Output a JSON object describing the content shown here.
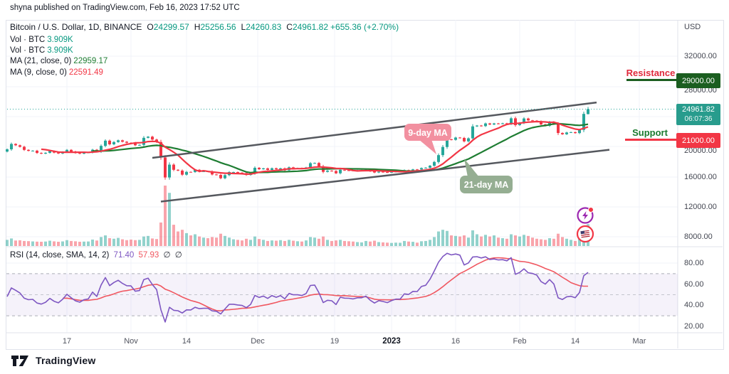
{
  "attribution": "shyna published on TradingView.com, Feb 16, 2023 17:52 UTC",
  "footer": {
    "brand": "TradingView"
  },
  "legend": {
    "symbol": "Bitcoin / U.S. Dollar, 1D, BINANCE",
    "ohlc": [
      {
        "label": "O",
        "value": "24299.57"
      },
      {
        "label": "H",
        "value": "25256.56"
      },
      {
        "label": "L",
        "value": "24260.83"
      },
      {
        "label": "C",
        "value": "24961.82"
      }
    ],
    "change": "+655.36 (+2.70%)",
    "vol_rows": [
      {
        "label": "Vol · BTC",
        "value": "3.909K"
      },
      {
        "label": "Vol · BTC",
        "value": "3.909K"
      }
    ],
    "ma_rows": [
      {
        "label": "MA (21, close, 0)",
        "value": "22959.17",
        "color": "#1e7d32"
      },
      {
        "label": "MA (9, close, 0)",
        "value": "22591.49",
        "color": "#f23645"
      }
    ]
  },
  "rsi_legend": {
    "label": "RSI (14, close, SMA, 14, 2)",
    "rsi_value": "71.40",
    "sma_value": "57.93",
    "empty1": "∅",
    "empty2": "∅"
  },
  "axes": {
    "currency": "USD",
    "price_ticks": [
      "32000.00",
      "28000.00",
      "24000.00",
      "20000.00",
      "16000.00",
      "12000.00",
      "8000.00"
    ],
    "rsi_ticks": [
      "80.00",
      "60.00",
      "40.00",
      "20.00"
    ],
    "time_ticks": [
      {
        "label": "17"
      },
      {
        "label": "Nov"
      },
      {
        "label": "14"
      },
      {
        "label": "Dec"
      },
      {
        "label": "19"
      },
      {
        "label": "2023",
        "bold": true
      },
      {
        "label": "16"
      },
      {
        "label": "Feb"
      },
      {
        "label": "14"
      },
      {
        "label": "Mar"
      }
    ]
  },
  "levels": {
    "resistance": {
      "text": "Resistance",
      "price": "29000.00"
    },
    "support": {
      "text": "Support",
      "price": "21000.00"
    },
    "last_price": {
      "price": "24961.82",
      "countdown": "06:07:36"
    }
  },
  "annotations": {
    "ma9_callout": "9-day MA",
    "ma21_callout": "21-day MA"
  },
  "icons": {
    "event1": "lightning-event",
    "event2": "us-flag-event"
  },
  "chart_data": {
    "type": "candlestick",
    "title": "Bitcoin / U.S. Dollar",
    "interval": "1D",
    "exchange": "BINANCE",
    "start_date": "2022-10-03",
    "price_axis_range": [
      8000,
      32000
    ],
    "rsi_axis_range": [
      20,
      80
    ],
    "grid": true,
    "first_open": 19320,
    "closes": [
      19623,
      20336,
      20160,
      19955,
      19546,
      19417,
      19441,
      19139,
      19051,
      19157,
      19382,
      19180,
      19068,
      19262,
      19550,
      19334,
      19129,
      19041,
      19164,
      19204,
      19567,
      19330,
      20080,
      20770,
      20285,
      20590,
      20818,
      20630,
      20490,
      20480,
      20160,
      20210,
      21150,
      21300,
      20920,
      20590,
      18540,
      15880,
      17585,
      16900,
      16795,
      16250,
      16620,
      16610,
      16900,
      16660,
      16700,
      16690,
      16280,
      16220,
      15780,
      16190,
      16600,
      16600,
      16520,
      16460,
      16210,
      16440,
      17165,
      16980,
      17090,
      16885,
      17105,
      16970,
      17090,
      16840,
      17230,
      17130,
      17130,
      17085,
      17210,
      17775,
      17805,
      17360,
      16630,
      16780,
      16740,
      16440,
      16900,
      16830,
      16820,
      16780,
      16840,
      16840,
      16920,
      16705,
      16540,
      16640,
      16600,
      16540,
      16615,
      16670,
      16670,
      16860,
      16840,
      16950,
      16945,
      17130,
      17180,
      17440,
      17940,
      18850,
      19930,
      20955,
      20880,
      21185,
      21135,
      20680,
      21080,
      22670,
      22780,
      22710,
      23060,
      22920,
      23060,
      23010,
      23080,
      23030,
      23745,
      22840,
      23130,
      23720,
      23470,
      23430,
      23330,
      22930,
      22760,
      23250,
      22960,
      21790,
      21625,
      21860,
      21900,
      21780,
      22200,
      24330,
      24961.82
    ],
    "volumes": [
      1100,
      1350,
      980,
      1020,
      900,
      870,
      820,
      780,
      760,
      800,
      950,
      830,
      760,
      820,
      1050,
      900,
      840,
      760,
      790,
      810,
      1150,
      980,
      1600,
      1900,
      1400,
      1300,
      1450,
      1200,
      1050,
      1150,
      1050,
      1100,
      1700,
      1800,
      1350,
      1250,
      4200,
      10800,
      9500,
      3800,
      2600,
      2900,
      2300,
      1900,
      2100,
      1700,
      1500,
      1400,
      1600,
      1500,
      2200,
      1800,
      1500,
      1200,
      1100,
      1000,
      1300,
      1100,
      1700,
      1250,
      1100,
      900,
      1000,
      950,
      1050,
      900,
      1100,
      950,
      850,
      800,
      1000,
      1600,
      1500,
      1300,
      1700,
      1100,
      900,
      1000,
      1100,
      900,
      850,
      800,
      700,
      650,
      900,
      800,
      950,
      700,
      650,
      600,
      550,
      600,
      580,
      900,
      800,
      750,
      600,
      850,
      900,
      1100,
      1600,
      2600,
      2900,
      2700,
      1900,
      1800,
      1700,
      1900,
      1500,
      2800,
      2100,
      1700,
      2000,
      1700,
      1900,
      1500,
      1400,
      1300,
      2100,
      1900,
      1700,
      2000,
      1800,
      1500,
      1300,
      1200,
      1100,
      1400,
      1300,
      2200,
      1600,
      1300,
      1100,
      900,
      1400,
      3300,
      3909
    ],
    "volume_max_scale": 10800,
    "last_candle": {
      "o": 24299.57,
      "h": 25256.56,
      "l": 24260.83,
      "c": 24961.82
    },
    "moving_averages": [
      {
        "period": 21,
        "last_value": 22959.17,
        "color": "#1e7d32"
      },
      {
        "period": 9,
        "last_value": 22591.49,
        "color": "#f23645"
      }
    ],
    "rsi": {
      "period": 14,
      "seed_avg_gain": 140,
      "seed_avg_loss": 150,
      "sma_period": 14,
      "last_value": 71.4,
      "sma_last_value": 57.93,
      "band_levels": [
        70,
        50,
        30
      ]
    },
    "trendlines": [
      {
        "from_index": 34,
        "from_price": 18490,
        "to_index": 138,
        "to_price": 25850
      },
      {
        "from_index": 36,
        "from_price": 12680,
        "to_index": 141,
        "to_price": 19560
      }
    ],
    "levels": {
      "resistance": 29000,
      "support": 21000,
      "last_price": 24961.82
    },
    "colors": {
      "up": "#26a69a",
      "down": "#f23645",
      "vol_up": "rgba(38,166,154,0.5)",
      "vol_down": "rgba(242,54,69,0.45)",
      "ma9": "#f23645",
      "ma21": "#1e7d32",
      "trendline": "#55585e",
      "rsi": "#7e57c2",
      "rsi_ma": "#f05760",
      "rsi_band": "rgba(126,87,194,0.08)",
      "price_line": "#26a69a",
      "resistance_box": "#1b5e20",
      "support_box": "#f23645",
      "last_price_box": "#289c8d",
      "callout_pink": "#f290a0",
      "callout_green": "#95ae92"
    }
  }
}
